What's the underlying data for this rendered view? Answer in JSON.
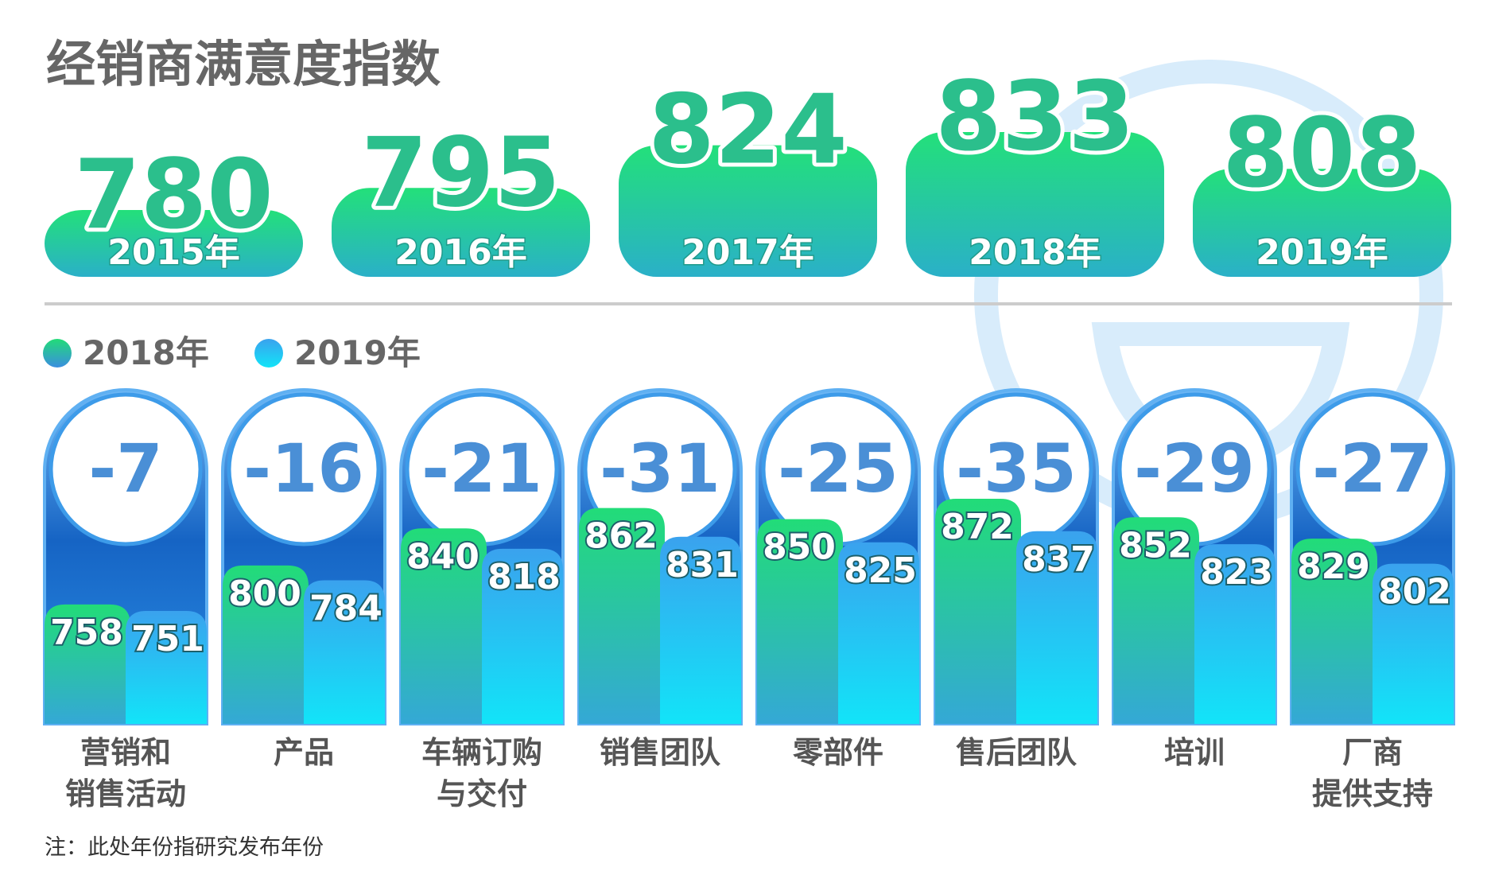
{
  "title": "经销商满意度指数",
  "chart_data": [
    {
      "type": "card",
      "categories": [
        "2015年",
        "2016年",
        "2017年",
        "2018年",
        "2019年"
      ],
      "values": [
        780,
        795,
        824,
        833,
        808
      ]
    },
    {
      "type": "bar",
      "categories": [
        "营销和\n销售活动",
        "产品",
        "车辆订购\n与交付",
        "销售团队",
        "零部件",
        "售后团队",
        "培训",
        "厂商\n提供支持"
      ],
      "series": [
        {
          "name": "2018年",
          "color": "#22c97a",
          "values": [
            758,
            800,
            840,
            862,
            850,
            872,
            852,
            829
          ]
        },
        {
          "name": "2019年",
          "color": "#29b6f0",
          "values": [
            751,
            784,
            818,
            831,
            825,
            837,
            823,
            802
          ]
        }
      ],
      "differences": [
        -7,
        -16,
        -21,
        -31,
        -25,
        -35,
        -29,
        -27
      ]
    }
  ],
  "note": "注：此处年份指研究发布年份"
}
